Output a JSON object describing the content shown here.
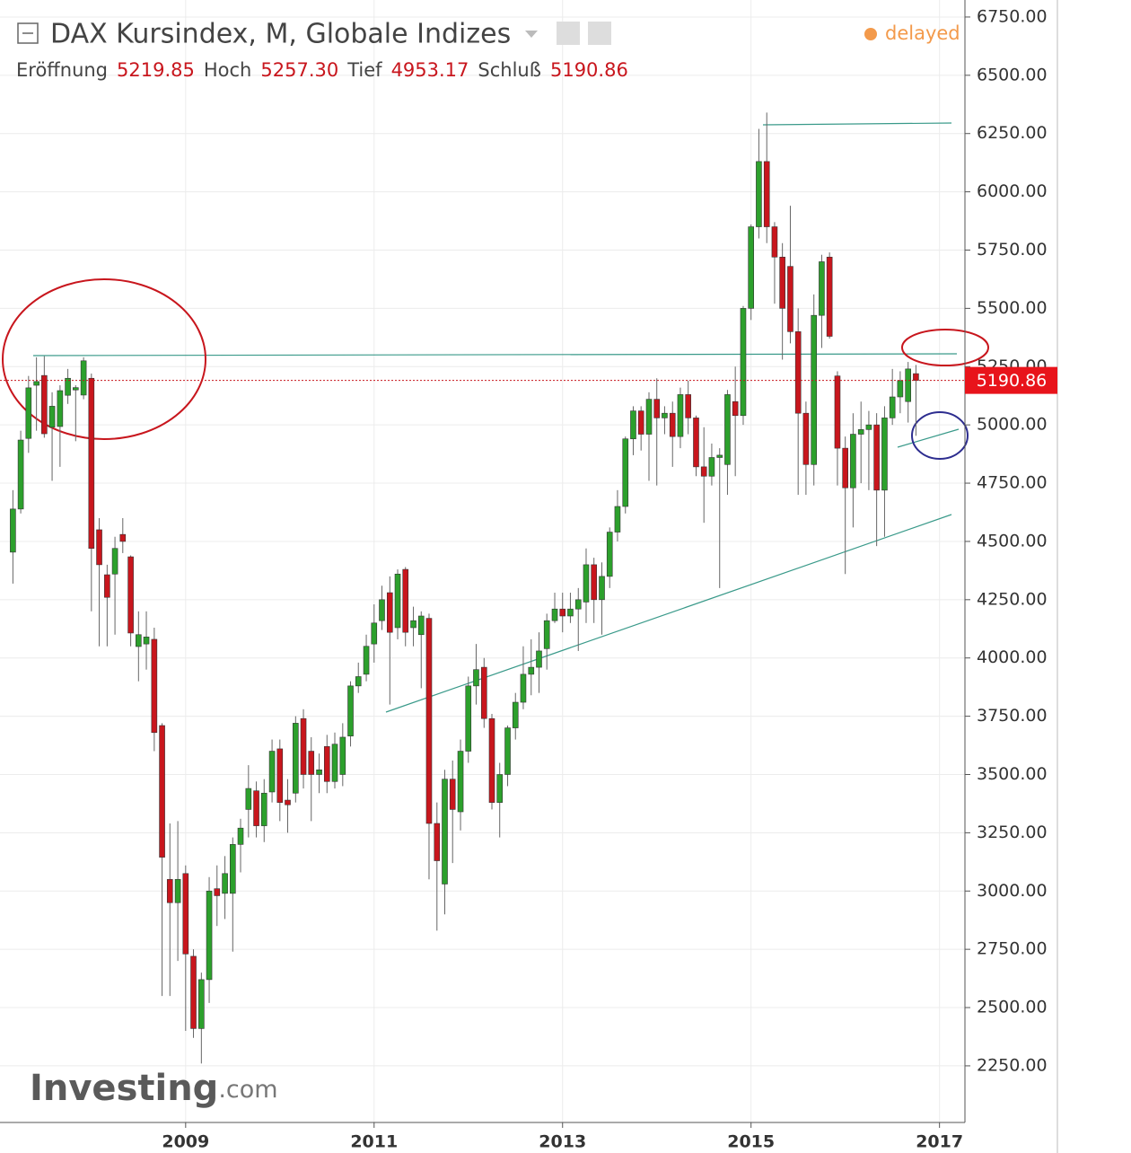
{
  "chart_data": {
    "type": "candlestick",
    "title": "DAX Kursindex, M, Globale Indizes",
    "labels": {
      "open": "Eröffnung",
      "high": "Hoch",
      "low": "Tief",
      "close": "Schluß"
    },
    "value_labels": {
      "open": "5219.85",
      "high": "5257.30",
      "low": "4953.17",
      "close": "5190.86"
    },
    "status": "delayed",
    "logo": {
      "main": "Investing",
      "suffix": ".com"
    },
    "up_color": "#2ca02c",
    "down_color": "#c8161d",
    "grid": true,
    "xlim": [
      2007.03,
      2017.27
    ],
    "xticks": [
      2009,
      2011,
      2013,
      2015,
      2017
    ],
    "ylim": [
      2007,
      6823
    ],
    "yticks": [
      {
        "value": 2250,
        "label": "2250.00"
      },
      {
        "value": 2500,
        "label": "2500.00"
      },
      {
        "value": 2750,
        "label": "2750.00"
      },
      {
        "value": 3000,
        "label": "3000.00"
      },
      {
        "value": 3250,
        "label": "3250.00"
      },
      {
        "value": 3500,
        "label": "3500.00"
      },
      {
        "value": 3750,
        "label": "3750.00"
      },
      {
        "value": 4000,
        "label": "4000.00"
      },
      {
        "value": 4250,
        "label": "4250.00"
      },
      {
        "value": 4500,
        "label": "4500.00"
      },
      {
        "value": 4750,
        "label": "4750.00"
      },
      {
        "value": 5000,
        "label": "5000.00"
      },
      {
        "value": 5250,
        "label": "5250.00"
      },
      {
        "value": 5500,
        "label": "5500.00"
      },
      {
        "value": 5750,
        "label": "5750.00"
      },
      {
        "value": 6000,
        "label": "6000.00"
      },
      {
        "value": 6250,
        "label": "6250.00"
      },
      {
        "value": 6500,
        "label": "6500.00"
      },
      {
        "value": 6750,
        "label": "6750.00"
      }
    ],
    "x": [
      2007.167,
      2007.25,
      2007.333,
      2007.417,
      2007.5,
      2007.583,
      2007.667,
      2007.75,
      2007.833,
      2007.917,
      2008,
      2008.083,
      2008.167,
      2008.25,
      2008.333,
      2008.417,
      2008.5,
      2008.583,
      2008.667,
      2008.75,
      2008.833,
      2008.917,
      2009,
      2009.083,
      2009.167,
      2009.25,
      2009.333,
      2009.417,
      2009.5,
      2009.583,
      2009.667,
      2009.75,
      2009.833,
      2009.917,
      2010,
      2010.083,
      2010.167,
      2010.25,
      2010.333,
      2010.417,
      2010.5,
      2010.583,
      2010.667,
      2010.75,
      2010.833,
      2010.917,
      2011,
      2011.083,
      2011.167,
      2011.25,
      2011.333,
      2011.417,
      2011.5,
      2011.583,
      2011.667,
      2011.75,
      2011.833,
      2011.917,
      2012,
      2012.083,
      2012.167,
      2012.25,
      2012.333,
      2012.417,
      2012.5,
      2012.583,
      2012.667,
      2012.75,
      2012.833,
      2012.917,
      2013,
      2013.083,
      2013.167,
      2013.25,
      2013.333,
      2013.417,
      2013.5,
      2013.583,
      2013.667,
      2013.75,
      2013.833,
      2013.917,
      2014,
      2014.083,
      2014.167,
      2014.25,
      2014.333,
      2014.417,
      2014.5,
      2014.583,
      2014.667,
      2014.75,
      2014.833,
      2014.917,
      2015,
      2015.083,
      2015.167,
      2015.25,
      2015.333,
      2015.417,
      2015.5,
      2015.583,
      2015.667,
      2015.75,
      2015.833,
      2015.917,
      2016,
      2016.083,
      2016.167,
      2016.25,
      2016.333,
      2016.417,
      2016.5,
      2016.583,
      2016.667,
      2016.75
    ],
    "open": [
      4454,
      4639,
      4942,
      5170,
      5212,
      4990,
      4993,
      5127,
      5150,
      5128,
      5200,
      4550,
      4357,
      4360,
      4530,
      4434,
      4049,
      4060,
      4080,
      3710,
      3050,
      2950,
      3075,
      2720,
      2410,
      2620,
      3010,
      2990,
      2990,
      3200,
      3350,
      3430,
      3280,
      3425,
      3610,
      3390,
      3420,
      3740,
      3600,
      3500,
      3620,
      3470,
      3500,
      3665,
      3880,
      3930,
      4060,
      4160,
      4280,
      4130,
      4380,
      4130,
      4100,
      4170,
      3290,
      3030,
      3480,
      3340,
      3600,
      3880,
      3960,
      3740,
      3380,
      3500,
      3700,
      3810,
      3930,
      3960,
      4040,
      4160,
      4210,
      4180,
      4210,
      4240,
      4400,
      4250,
      4350,
      4540,
      4650,
      4940,
      5060,
      4960,
      5110,
      5030,
      5050,
      4950,
      5130,
      5030,
      4820,
      4780,
      4860,
      4830,
      5100,
      5040,
      5500,
      5850,
      6130,
      5850,
      5720,
      5680,
      5400,
      5050,
      4830,
      5470,
      5720,
      5210,
      4900,
      4730,
      4960,
      4980,
      5000,
      4720,
      5030,
      5120,
      5100,
      5219.85
    ],
    "high": [
      4720,
      4975,
      5210,
      5290,
      5295,
      5140,
      5170,
      5240,
      5170,
      5290,
      5220,
      4600,
      4400,
      4520,
      4600,
      4440,
      4200,
      4200,
      4130,
      3720,
      3290,
      3300,
      3110,
      2750,
      2650,
      3060,
      3110,
      3150,
      3230,
      3310,
      3540,
      3470,
      3480,
      3650,
      3650,
      3480,
      3750,
      3780,
      3660,
      3590,
      3670,
      3680,
      3720,
      3900,
      3980,
      4100,
      4230,
      4310,
      4350,
      4380,
      4390,
      4220,
      4200,
      4190,
      3380,
      3520,
      3560,
      3650,
      3920,
      4060,
      4000,
      3760,
      3550,
      3710,
      3850,
      4050,
      4080,
      4110,
      4190,
      4280,
      4280,
      4280,
      4300,
      4470,
      4430,
      4410,
      4560,
      4720,
      4950,
      5080,
      5080,
      5140,
      5200,
      5080,
      5100,
      5160,
      5190,
      5040,
      4990,
      4920,
      4900,
      5150,
      5250,
      5510,
      5860,
      6270,
      6340,
      5870,
      5780,
      5940,
      5500,
      5100,
      5560,
      5730,
      5740,
      5230,
      4950,
      5050,
      5100,
      5060,
      5050,
      5080,
      5240,
      5230,
      5270,
      5257.3
    ],
    "low": [
      4319,
      4620,
      4880,
      4975,
      4945,
      4760,
      4820,
      5090,
      4930,
      5110,
      4200,
      4050,
      4050,
      4100,
      4450,
      4050,
      3900,
      3950,
      3600,
      2550,
      2550,
      2700,
      2400,
      2370,
      2260,
      2520,
      2850,
      2880,
      2740,
      3080,
      3230,
      3230,
      3210,
      3380,
      3300,
      3250,
      3380,
      3440,
      3300,
      3420,
      3420,
      3440,
      3450,
      3620,
      3850,
      3900,
      3980,
      4120,
      3800,
      4080,
      4050,
      4050,
      3870,
      3050,
      2830,
      2900,
      3120,
      3260,
      3550,
      3800,
      3700,
      3350,
      3230,
      3450,
      3650,
      3780,
      3840,
      3850,
      3950,
      4150,
      4110,
      4150,
      4030,
      4150,
      4150,
      4100,
      4300,
      4500,
      4620,
      4870,
      4890,
      4760,
      4740,
      4960,
      4820,
      4900,
      4960,
      4780,
      4580,
      4740,
      4300,
      4700,
      4780,
      5000,
      5450,
      5800,
      5780,
      5520,
      5280,
      5350,
      4700,
      4700,
      4740,
      5330,
      5370,
      4740,
      4360,
      4560,
      4750,
      4720,
      4480,
      4520,
      5000,
      5050,
      5010,
      4953.17
    ],
    "close": [
      4639,
      4935,
      5159,
      5186,
      4962,
      5080,
      5147,
      5200,
      5160,
      5275,
      4470,
      4400,
      4260,
      4470,
      4500,
      4107,
      4100,
      4090,
      3680,
      3145,
      2950,
      3050,
      2730,
      2410,
      2620,
      3000,
      2980,
      3075,
      3200,
      3270,
      3440,
      3280,
      3420,
      3600,
      3380,
      3370,
      3720,
      3500,
      3500,
      3520,
      3470,
      3630,
      3660,
      3880,
      3920,
      4050,
      4150,
      4250,
      4110,
      4360,
      4110,
      4160,
      4180,
      3290,
      3130,
      3480,
      3350,
      3600,
      3880,
      3950,
      3740,
      3380,
      3500,
      3700,
      3810,
      3930,
      3960,
      4030,
      4160,
      4210,
      4180,
      4210,
      4250,
      4400,
      4250,
      4350,
      4540,
      4650,
      4940,
      5060,
      4960,
      5110,
      5030,
      5050,
      4950,
      5130,
      5030,
      4820,
      4780,
      4860,
      4870,
      5130,
      5040,
      5500,
      5850,
      6130,
      5850,
      5720,
      5500,
      5400,
      5050,
      4830,
      5470,
      5700,
      5380,
      4900,
      4730,
      4960,
      4980,
      5000,
      4720,
      5030,
      5120,
      5190,
      5240,
      5190.86
    ]
  }
}
